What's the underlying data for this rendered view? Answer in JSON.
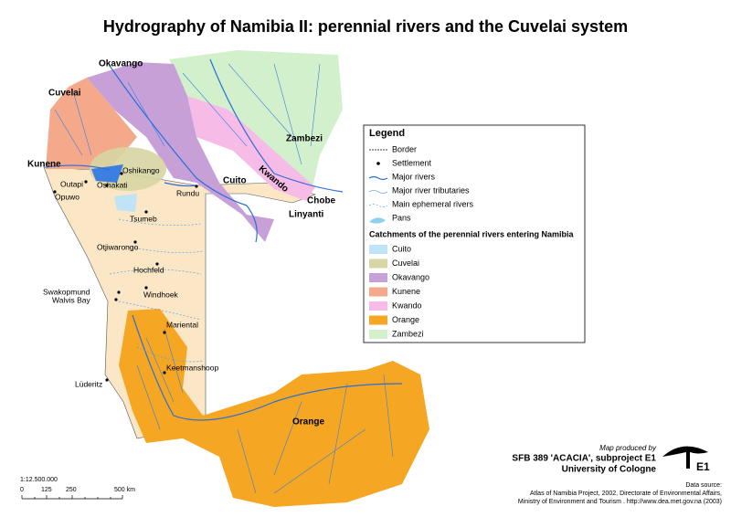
{
  "title": "Hydrography of Namibia II: perennial rivers and the Cuvelai system",
  "rivers": [
    "Okavango",
    "Cuvelai",
    "Kunene",
    "Zambezi",
    "Kwando",
    "Cuito",
    "Chobe",
    "Linyanti",
    "Orange"
  ],
  "settlements": [
    "Oshikango",
    "Outapi",
    "Oshakati",
    "Opuwo",
    "Rundu",
    "Tsumeb",
    "Otjiwarongo",
    "Hochfeld",
    "Swakopmund",
    "Walvis Bay",
    "Windhoek",
    "Mariental",
    "Keetmanshoop",
    "Lüderitz"
  ],
  "legend": {
    "title": "Legend",
    "items": [
      "Border",
      "Settlement",
      "Major rivers",
      "Major river tributaries",
      "Main ephemeral rivers",
      "Pans"
    ],
    "catchments_title": "Catchments of the perennial rivers entering Namibia",
    "catchments": [
      {
        "name": "Cuito",
        "color": "#bfe4f6"
      },
      {
        "name": "Cuvelai",
        "color": "#d7d5a3"
      },
      {
        "name": "Okavango",
        "color": "#c7a0d8"
      },
      {
        "name": "Kunene",
        "color": "#f4a98a"
      },
      {
        "name": "Kwando",
        "color": "#f7bbe8"
      },
      {
        "name": "Orange",
        "color": "#f5a623"
      },
      {
        "name": "Zambezi",
        "color": "#d2f0cc"
      }
    ]
  },
  "credits": {
    "intro": "Map produced by",
    "line1": "SFB 389 'ACACIA', subproject E1",
    "line2": "University of Cologne",
    "logo": "E1"
  },
  "scale": {
    "ratio": "1:12.500.000",
    "ticks": [
      "0",
      "125",
      "250",
      "500 km"
    ]
  },
  "source": [
    "Data source:",
    "Atlas of Namibia Project, 2002, Directorate of Environmental Affairs,",
    "Ministry of Environment and Tourism . http://www.dea.met.gov.na (2003)"
  ]
}
